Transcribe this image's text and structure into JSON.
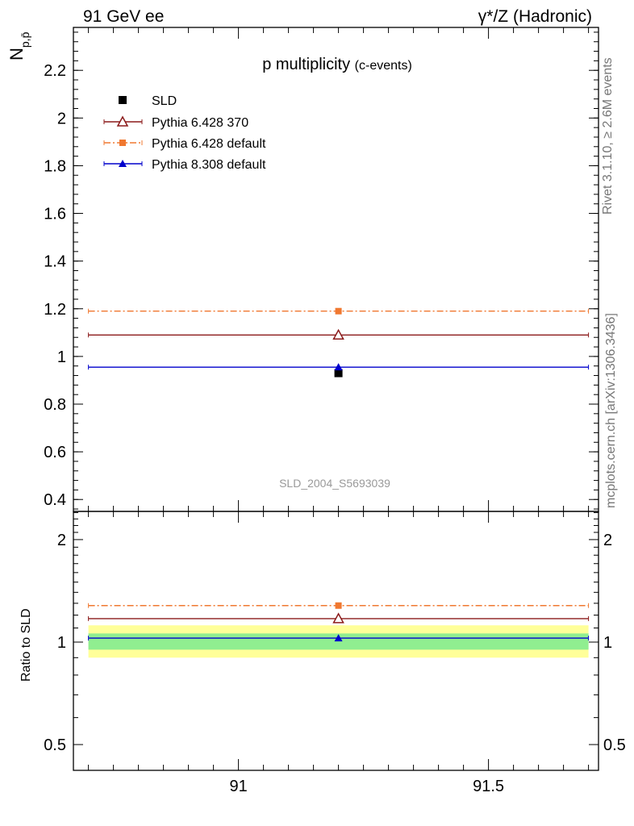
{
  "header": {
    "left": "91 GeV ee",
    "right": "γ*/Z (Hadronic)"
  },
  "side_labels": {
    "rivet": "Rivet 3.1.10, ≥ 2.6M events",
    "mcplots": "mcplots.cern.ch [arXiv:1306.3436]"
  },
  "colors": {
    "data": "#000000",
    "pythia6_370": "#8b1a1a",
    "pythia6_default": "#f07830",
    "pythia8": "#0000cc",
    "band_inner": "#90ee90",
    "band_outer": "#ffff99"
  },
  "chart_data": [
    {
      "type": "scatter",
      "title": "p multiplicity",
      "title_suffix": "(c-events)",
      "ylabel": "N",
      "ylabel_sub": "p,p̄",
      "watermark": "SLD_2004_S5693039",
      "xlim": [
        90.67,
        91.72
      ],
      "ylim": [
        0.35,
        2.38
      ],
      "yticks": [
        0.4,
        0.6,
        0.8,
        1,
        1.2,
        1.4,
        1.6,
        1.8,
        2,
        2.2
      ],
      "ytick_labels": [
        "0.4",
        "0.6",
        "0.8",
        "1",
        "1.2",
        "1.4",
        "1.6",
        "1.8",
        "2",
        "2.2"
      ],
      "legend_position": "top-left",
      "series": [
        {
          "name": "SLD",
          "marker": "square",
          "x": [
            91.2
          ],
          "y": [
            0.93
          ],
          "xlo": 91.2,
          "xhi": 91.2
        },
        {
          "name": "Pythia 6.428 370",
          "marker": "open-triangle",
          "x": [
            91.2
          ],
          "y": [
            1.09
          ],
          "xlo": 90.7,
          "xhi": 91.7,
          "dash": false
        },
        {
          "name": "Pythia 6.428 default",
          "marker": "small-square",
          "x": [
            91.2
          ],
          "y": [
            1.19
          ],
          "xlo": 90.7,
          "xhi": 91.7,
          "dash": true
        },
        {
          "name": "Pythia 8.308 default",
          "marker": "triangle",
          "x": [
            91.2
          ],
          "y": [
            0.955
          ],
          "xlo": 90.7,
          "xhi": 91.7,
          "dash": false
        }
      ]
    },
    {
      "type": "scatter",
      "ylabel": "Ratio to SLD",
      "xlim": [
        90.67,
        91.72
      ],
      "ylim": [
        0.42,
        2.42
      ],
      "log_y": true,
      "yticks": [
        0.5,
        1,
        2
      ],
      "ytick_labels": [
        "0.5",
        "1",
        "2"
      ],
      "xticks": [
        91,
        91.5
      ],
      "xtick_labels": [
        "91",
        "91.5"
      ],
      "band_outer": [
        0.9,
        1.12
      ],
      "band_inner": [
        0.95,
        1.06
      ],
      "series": [
        {
          "name": "Pythia 6.428 370",
          "x": [
            91.2
          ],
          "y": [
            1.172
          ]
        },
        {
          "name": "Pythia 6.428 default",
          "x": [
            91.2
          ],
          "y": [
            1.28
          ]
        },
        {
          "name": "Pythia 8.308 default",
          "x": [
            91.2
          ],
          "y": [
            1.027
          ]
        }
      ]
    }
  ]
}
